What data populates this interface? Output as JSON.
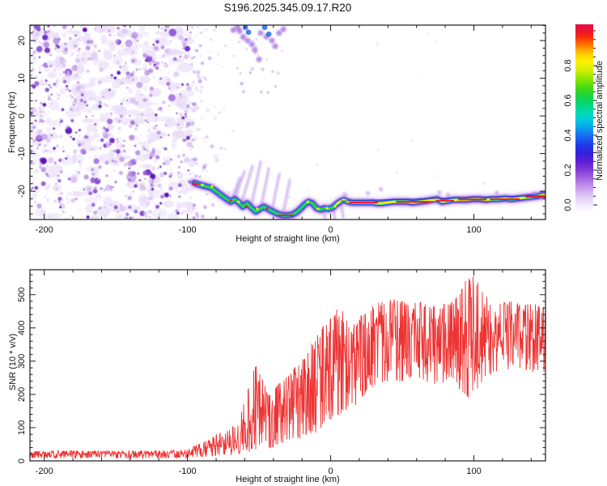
{
  "title": "S196.2025.345.09.17.R20",
  "axes": {
    "x": {
      "label": "Height of straight line (km)",
      "range": [
        -210,
        150
      ],
      "major_ticks": [
        -200,
        -100,
        0,
        100
      ],
      "minor_step": 20
    },
    "freq": {
      "label": "Frequency (Hz)",
      "range": [
        -27.5,
        24.1
      ],
      "major_ticks": [
        -20,
        -10,
        0,
        10,
        20
      ],
      "minor_step": 2
    },
    "snr": {
      "label": "SNR (10 * v/v)",
      "range": [
        0,
        575
      ],
      "major_ticks": [
        0,
        100,
        200,
        300,
        400,
        500
      ],
      "minor_step": 20
    }
  },
  "colorbar": {
    "label": "Normalized spectral amplitude",
    "range": [
      0,
      1
    ],
    "major_ticks": [
      0.0,
      0.2,
      0.4,
      0.6,
      0.8
    ],
    "tick_labels": [
      "0.0",
      "0.2",
      "0.4",
      "0.6",
      "0.8"
    ],
    "minor_step": 0.05,
    "gradient": [
      [
        0.0,
        "#ffffff"
      ],
      [
        0.03,
        "#f6eefc"
      ],
      [
        0.08,
        "#e4cdf7"
      ],
      [
        0.13,
        "#c79aef"
      ],
      [
        0.18,
        "#a566e3"
      ],
      [
        0.23,
        "#7f35d6"
      ],
      [
        0.27,
        "#5c1fd4"
      ],
      [
        0.31,
        "#3420dd"
      ],
      [
        0.35,
        "#2035e8"
      ],
      [
        0.4,
        "#1b63f0"
      ],
      [
        0.44,
        "#0d97f0"
      ],
      [
        0.48,
        "#00c2e4"
      ],
      [
        0.52,
        "#00d9c0"
      ],
      [
        0.56,
        "#00d98c"
      ],
      [
        0.6,
        "#0cd455"
      ],
      [
        0.64,
        "#2cd626"
      ],
      [
        0.68,
        "#5fdf0b"
      ],
      [
        0.72,
        "#9ce800"
      ],
      [
        0.76,
        "#d8ef00"
      ],
      [
        0.8,
        "#fdf200"
      ],
      [
        0.84,
        "#ffcf00"
      ],
      [
        0.87,
        "#ff9d00"
      ],
      [
        0.9,
        "#ff6400"
      ],
      [
        0.93,
        "#fb2e0c"
      ],
      [
        0.96,
        "#ef1427"
      ],
      [
        1.0,
        "#e01150"
      ]
    ]
  },
  "colors": {
    "frame": "#1a1a1a",
    "snr_line": "#ee3333",
    "trace_navy_line": "#2233bb",
    "trace_red": "#ee1b2e",
    "trace_yellow": "#f2ee00",
    "trace_layers": [
      "#c9a2ec",
      "#6f2bd8",
      "#2341e6",
      "#00c8e8",
      "#2fd035"
    ],
    "noise_palette": [
      "#e9ddf8",
      "#d3b8f0",
      "#b48ae5",
      "#9158d7",
      "#7732ca",
      "#5d13bb"
    ],
    "streak_purple": "#a875e2",
    "top_blob_purple": "#8a4ad6",
    "top_blob_cyan": "#00c0ee",
    "top_blob_blue": "#2a35e0"
  },
  "chart_data": [
    {
      "type": "heatmap",
      "title": "Doppler spectrogram",
      "xlabel": "Height of straight line (km)",
      "ylabel": "Frequency (Hz)",
      "x_range": [
        -210,
        150
      ],
      "y_range": [
        -27.5,
        24.1
      ],
      "legend": "colorbar: Normalized spectral amplitude 0.0-1.0",
      "noise_region": {
        "x_range": [
          -210,
          -97
        ],
        "description": "dense random purple speckle noise across all frequencies"
      },
      "trace_points": [
        [
          -95.2,
          -17.8
        ],
        [
          -91.3,
          -18.3
        ],
        [
          -87.3,
          -18.7
        ],
        [
          -83.4,
          -19.1
        ],
        [
          -80.0,
          -20.0
        ],
        [
          -76.6,
          -21.0
        ],
        [
          -73.2,
          -21.9
        ],
        [
          -69.8,
          -22.8
        ],
        [
          -67.0,
          -22.1
        ],
        [
          -64.2,
          -23.0
        ],
        [
          -61.3,
          -24.1
        ],
        [
          -58.5,
          -23.2
        ],
        [
          -55.7,
          -24.3
        ],
        [
          -52.3,
          -25.4
        ],
        [
          -49.5,
          -24.7
        ],
        [
          -46.6,
          -24.1
        ],
        [
          -43.8,
          -24.7
        ],
        [
          -40.4,
          -25.4
        ],
        [
          -37.0,
          -26.0
        ],
        [
          -33.6,
          -26.4
        ],
        [
          -30.2,
          -26.4
        ],
        [
          -26.9,
          -26.2
        ],
        [
          -24.0,
          -25.6
        ],
        [
          -21.2,
          -24.7
        ],
        [
          -18.4,
          -23.6
        ],
        [
          -15.5,
          -22.8
        ],
        [
          -12.7,
          -23.2
        ],
        [
          -9.9,
          -24.5
        ],
        [
          -7.1,
          -24.9
        ],
        [
          -4.2,
          -24.5
        ],
        [
          -1.4,
          -24.7
        ],
        [
          1.4,
          -24.3
        ],
        [
          4.2,
          -23.4
        ],
        [
          7.1,
          -22.6
        ],
        [
          9.3,
          -22.3
        ],
        [
          12.2,
          -22.8
        ],
        [
          15.5,
          -23.0
        ],
        [
          18.9,
          -23.0
        ],
        [
          22.3,
          -23.0
        ],
        [
          25.7,
          -23.0
        ],
        [
          29.1,
          -23.0
        ],
        [
          32.5,
          -23.2
        ],
        [
          35.9,
          -23.2
        ],
        [
          39.3,
          -23.0
        ],
        [
          43.8,
          -22.8
        ],
        [
          48.3,
          -22.8
        ],
        [
          52.9,
          -22.8
        ],
        [
          57.4,
          -23.0
        ],
        [
          61.9,
          -22.8
        ],
        [
          66.4,
          -22.6
        ],
        [
          70.9,
          -22.3
        ],
        [
          74.3,
          -22.1
        ],
        [
          77.7,
          -22.8
        ],
        [
          81.1,
          -22.6
        ],
        [
          85.6,
          -22.3
        ],
        [
          90.2,
          -22.3
        ],
        [
          94.7,
          -22.3
        ],
        [
          99.2,
          -22.1
        ],
        [
          103.7,
          -22.1
        ],
        [
          108.3,
          -22.3
        ],
        [
          112.8,
          -22.1
        ],
        [
          117.3,
          -22.1
        ],
        [
          121.8,
          -21.9
        ],
        [
          126.3,
          -22.1
        ],
        [
          130.9,
          -21.9
        ],
        [
          135.4,
          -21.7
        ],
        [
          139.9,
          -21.5
        ],
        [
          144.4,
          -21.3
        ],
        [
          147.8,
          -21.0
        ],
        [
          150.0,
          -20.9
        ]
      ],
      "hot_segments_red": [
        [
          -96.0,
          -92.0,
          -18.1
        ],
        [
          -36.5,
          -26.3,
          -26.4
        ],
        [
          13.3,
          32.5,
          -23.0
        ],
        [
          46.1,
          69.9,
          -22.8
        ],
        [
          74.3,
          85.6,
          -22.5
        ],
        [
          89.6,
          108.3,
          -22.2
        ],
        [
          111.6,
          131.4,
          -22.1
        ],
        [
          136.5,
          149.5,
          -21.5
        ]
      ],
      "hot_dots_yellow": [
        [
          -89.6,
          -18.3
        ],
        [
          -82.8,
          -18.7
        ],
        [
          -64.2,
          -22.8
        ],
        [
          -51.2,
          -24.7
        ],
        [
          -16.1,
          -22.8
        ],
        [
          -8.8,
          -24.7
        ],
        [
          -2.5,
          -24.5
        ],
        [
          3.1,
          -24.0
        ],
        [
          9.3,
          -22.3
        ],
        [
          36.0,
          -23.2
        ],
        [
          72.0,
          -22.3
        ],
        [
          87.0,
          -22.4
        ],
        [
          110.0,
          -22.2
        ],
        [
          133.0,
          -21.8
        ]
      ],
      "hot_dots_red": [
        [
          -95.2,
          -17.9
        ],
        [
          -69.8,
          -22.6
        ],
        [
          -59.0,
          -24.1
        ],
        [
          -44.4,
          -24.6
        ]
      ],
      "top_edge_blobs_cyan": [
        [
          -59.6,
          23.5
        ],
        [
          -57.4,
          22.2
        ],
        [
          -46.1,
          23.5
        ],
        [
          -43.2,
          21.7
        ]
      ],
      "top_edge_blobs_purple": [
        [
          -65.0,
          23.5
        ],
        [
          -63.5,
          22.5
        ],
        [
          -61.0,
          21.0
        ],
        [
          -58.0,
          20.0
        ],
        [
          -55.0,
          19.0
        ],
        [
          -53.0,
          17.5
        ],
        [
          -50.0,
          15.0
        ],
        [
          -48.9,
          22.0
        ],
        [
          -45.0,
          21.0
        ],
        [
          -41.0,
          20.0
        ],
        [
          -38.7,
          18.5
        ],
        [
          -36.0,
          22.0
        ],
        [
          -33.0,
          23.0
        ],
        [
          -68.0,
          22.8
        ]
      ],
      "diag_streaks": [
        [
          -60.2,
          -14.8,
          -68.1,
          -23.0
        ],
        [
          -54.6,
          -13.3,
          -62.5,
          -23.4
        ],
        [
          -48.9,
          -12.2,
          -55.7,
          -24.3
        ],
        [
          -43.2,
          -14.0,
          -48.9,
          -24.7
        ],
        [
          -35.9,
          -15.5,
          -41.0,
          -25.1
        ],
        [
          -28.5,
          -17.0,
          -33.1,
          -25.8
        ],
        [
          -63.6,
          -16.5,
          -69.2,
          -22.6
        ],
        [
          -5.4,
          -24.3,
          -3.7,
          -27.5
        ],
        [
          1.4,
          -23.6,
          3.1,
          -27.5
        ],
        [
          7.1,
          -23.2,
          8.8,
          -26.9
        ]
      ],
      "fuzz_puffs": [
        [
          10.0,
          -20.8
        ],
        [
          26.0,
          -20.5
        ],
        [
          35.0,
          -19.5
        ],
        [
          76.0,
          -20.3
        ],
        [
          82.0,
          -21.0
        ],
        [
          116.0,
          -20.4
        ],
        [
          142.0,
          -20.6
        ],
        [
          147.0,
          -21.6
        ]
      ],
      "fit_line": [
        [
          7.0,
          -22.6
        ],
        [
          150.0,
          -21.1
        ]
      ]
    },
    {
      "type": "line",
      "name": "SNR",
      "xlabel": "Height of straight line (km)",
      "ylabel": "SNR (10 * v/v)",
      "x_range": [
        -210,
        150
      ],
      "y_range": [
        0,
        575
      ],
      "color": "#ee3333",
      "description": "jagged noisy trace oscillating between lo and hi envelope",
      "envelope_keypoints": [
        [
          -210,
          8,
          30
        ],
        [
          -180,
          8,
          31
        ],
        [
          -150,
          8,
          30
        ],
        [
          -120,
          8,
          31
        ],
        [
          -100,
          9,
          34
        ],
        [
          -93,
          10,
          50
        ],
        [
          -86,
          12,
          62
        ],
        [
          -78,
          14,
          85
        ],
        [
          -70,
          17,
          95
        ],
        [
          -64,
          20,
          130
        ],
        [
          -58,
          24,
          215
        ],
        [
          -52,
          28,
          295
        ],
        [
          -47,
          30,
          240
        ],
        [
          -42,
          38,
          205
        ],
        [
          -36,
          45,
          235
        ],
        [
          -30,
          55,
          260
        ],
        [
          -24,
          60,
          285
        ],
        [
          -18,
          70,
          315
        ],
        [
          -12,
          80,
          365
        ],
        [
          -6,
          95,
          405
        ],
        [
          0,
          110,
          435
        ],
        [
          5,
          130,
          465
        ],
        [
          9,
          145,
          455
        ],
        [
          14,
          140,
          395
        ],
        [
          20,
          175,
          440
        ],
        [
          27,
          215,
          465
        ],
        [
          35,
          235,
          480
        ],
        [
          45,
          230,
          490
        ],
        [
          55,
          245,
          472
        ],
        [
          65,
          235,
          480
        ],
        [
          75,
          230,
          465
        ],
        [
          85,
          245,
          482
        ],
        [
          92,
          200,
          525
        ],
        [
          97,
          180,
          568
        ],
        [
          102,
          210,
          545
        ],
        [
          108,
          250,
          500
        ],
        [
          115,
          262,
          478
        ],
        [
          125,
          270,
          482
        ],
        [
          135,
          275,
          470
        ],
        [
          145,
          262,
          480
        ],
        [
          150,
          258,
          475
        ]
      ]
    }
  ]
}
